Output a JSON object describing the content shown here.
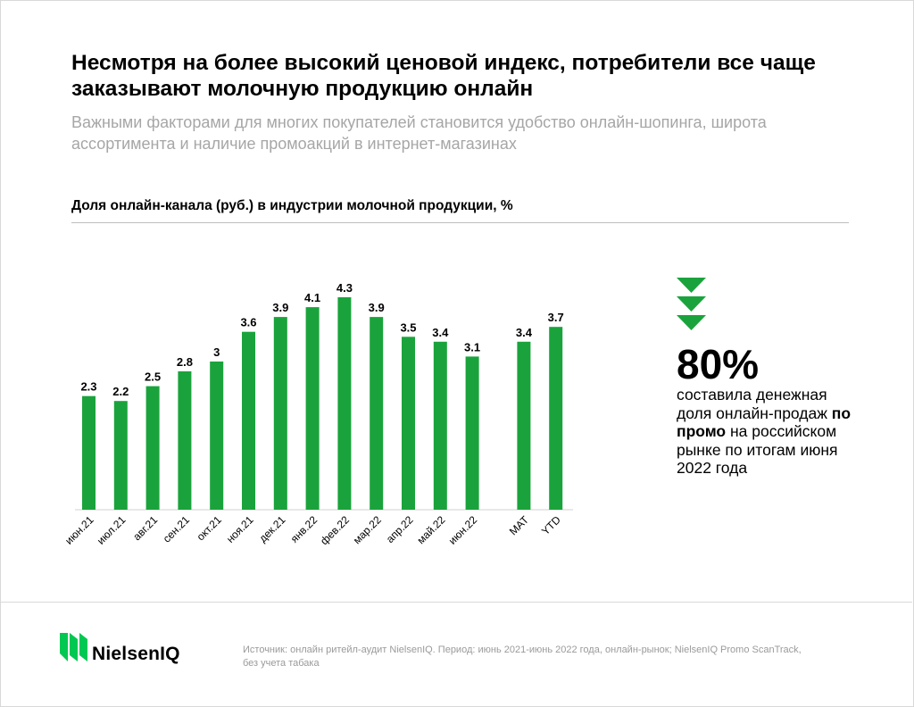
{
  "header": {
    "title": "Несмотря на более высокий ценовой индекс, потребители все чаще заказывают молочную продукцию онлайн",
    "subtitle": "Важными факторами для многих покупателей становится удобство онлайн-шопинга, широта ассортимента и наличие промоакций в интернет-магазинах"
  },
  "chart_data": {
    "type": "bar",
    "title": "Доля онлайн-канала (руб.) в индустрии молочной продукции, %",
    "categories": [
      "июн.21",
      "июл.21",
      "авг.21",
      "сен.21",
      "окт.21",
      "ноя.21",
      "дек.21",
      "янв.22",
      "фев.22",
      "мар.22",
      "апр.22",
      "май.22",
      "июн.22",
      "MAT",
      "YTD"
    ],
    "values": [
      2.3,
      2.2,
      2.5,
      2.8,
      3,
      3.6,
      3.9,
      4.1,
      4.3,
      3.9,
      3.5,
      3.4,
      3.1,
      3.4,
      3.7
    ],
    "value_labels": [
      "2.3",
      "2.2",
      "2.5",
      "2.8",
      "3",
      "3.6",
      "3.9",
      "4.1",
      "4.3",
      "3.9",
      "3.5",
      "3.4",
      "3.1",
      "3.4",
      "3.7"
    ],
    "ylim": [
      0,
      4.3
    ],
    "grid": false,
    "bar_color": "#1aa33c"
  },
  "callout": {
    "value": "80%",
    "text_before": "составила денежная доля онлайн-продаж ",
    "text_bold": "по промо",
    "text_after": " на российском рынке по итогам июня 2022 года",
    "chevron_color": "#1aa33c"
  },
  "footer": {
    "brand": "NielsenIQ",
    "source": "Источник: онлайн ритейл-аудит NielsenIQ. Период: июнь 2021-июнь 2022 года, онлайн-рынок; NielsenIQ Promo ScanTrack, без учета табака",
    "brand_color": "#00c853"
  }
}
